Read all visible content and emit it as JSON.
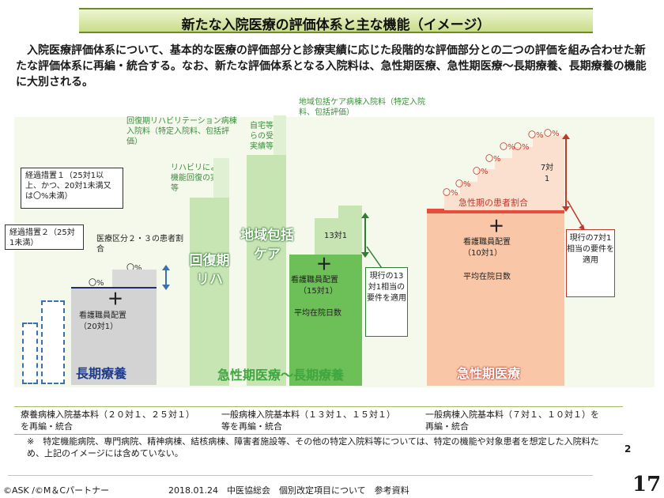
{
  "title": "新たな入院医療の評価体系と主な機能（イメージ）",
  "intro": "入院医療評価体系について、基本的な医療の評価部分と診療実績に応じた段階的な評価部分との二つの評価を組み合わせた新たな評価体系に再編・統合する。なお、新たな評価体系となる入院料は、急性期医療、急性期医療～長期療養、長期療養の機能に大別される。",
  "longterm": {
    "measure1": "経過措置１（25対1以上、かつ、20対1未満又は〇%未満）",
    "measure2": "経過措置２（25対1未満）",
    "patient_ratio": "医療区分２・３の患者割合",
    "pct_top": "〇%",
    "pct_mid": "〇%",
    "plus": "＋",
    "staffing": "看護職員配置",
    "staffing_ratio": "（20対1）",
    "category": "長期療養"
  },
  "middle": {
    "kaifuku_label": "回復期リハビリテーション病棟入院料（特定入院料、包括評価）",
    "rehab_note": "リハビリによる機能回復の実績等",
    "home_note": "自宅等からの受入実績等",
    "chiiki_label": "地域包括ケア病棟入院料（特定入院料、包括評価）",
    "kaifuku_big_1": "回復期",
    "kaifuku_big_2": "リハ",
    "chiiki_big_1": "地域包括",
    "chiiki_big_2": "ケア",
    "ratio13": "13対1",
    "plus": "＋",
    "staffing": "看護職員配置",
    "staffing_ratio": "（15対1）",
    "avg_stay": "平均在院日数",
    "requirement_box": "現行の13対1相当の要件を適用",
    "category": "急性期医療～長期療養"
  },
  "acute": {
    "pct_labels": [
      "〇%",
      "〇%",
      "〇%",
      "〇%",
      "〇%",
      "〇%",
      "〇%",
      "〇%"
    ],
    "ratio7": "7対1",
    "patient_ratio": "急性期の患者割合",
    "plus": "＋",
    "staffing": "看護職員配置",
    "staffing_ratio": "（10対1）",
    "avg_stay": "平均在院日数",
    "requirement_box": "現行の7対1相当の要件を適用",
    "category": "急性期医療"
  },
  "footer": {
    "col1": "療養病棟入院基本料（２０対１、２５対１）を再編・統合",
    "col2": "一般病棟入院基本料（１３対１、１５対１）等を再編・統合",
    "col3": "一般病棟入院基本料（７対１、１０対１）を再編・統合"
  },
  "footnote": "※　特定機能病院、専門病院、精神病棟、結核病棟、障害者施設等、その他の特定入院料等については、特定の機能や対象患者を想定した入院料ため、上記のイメージには含めていない。",
  "slide_number_small": "2",
  "credit": "©ASK /©M＆Cパートナー",
  "source": "2018.01.24　中医協総会　個別改定項目について　参考資料",
  "page_number": "17",
  "colors": {
    "title_green": "#c9dd8a",
    "gray": "#d3d3d3",
    "light_green": "#c6e5b3",
    "dark_green": "#6dbf58",
    "salmon": "#f9c7a7",
    "red_band": "#e74c3c",
    "blue_accent": "#3a6fb0"
  }
}
